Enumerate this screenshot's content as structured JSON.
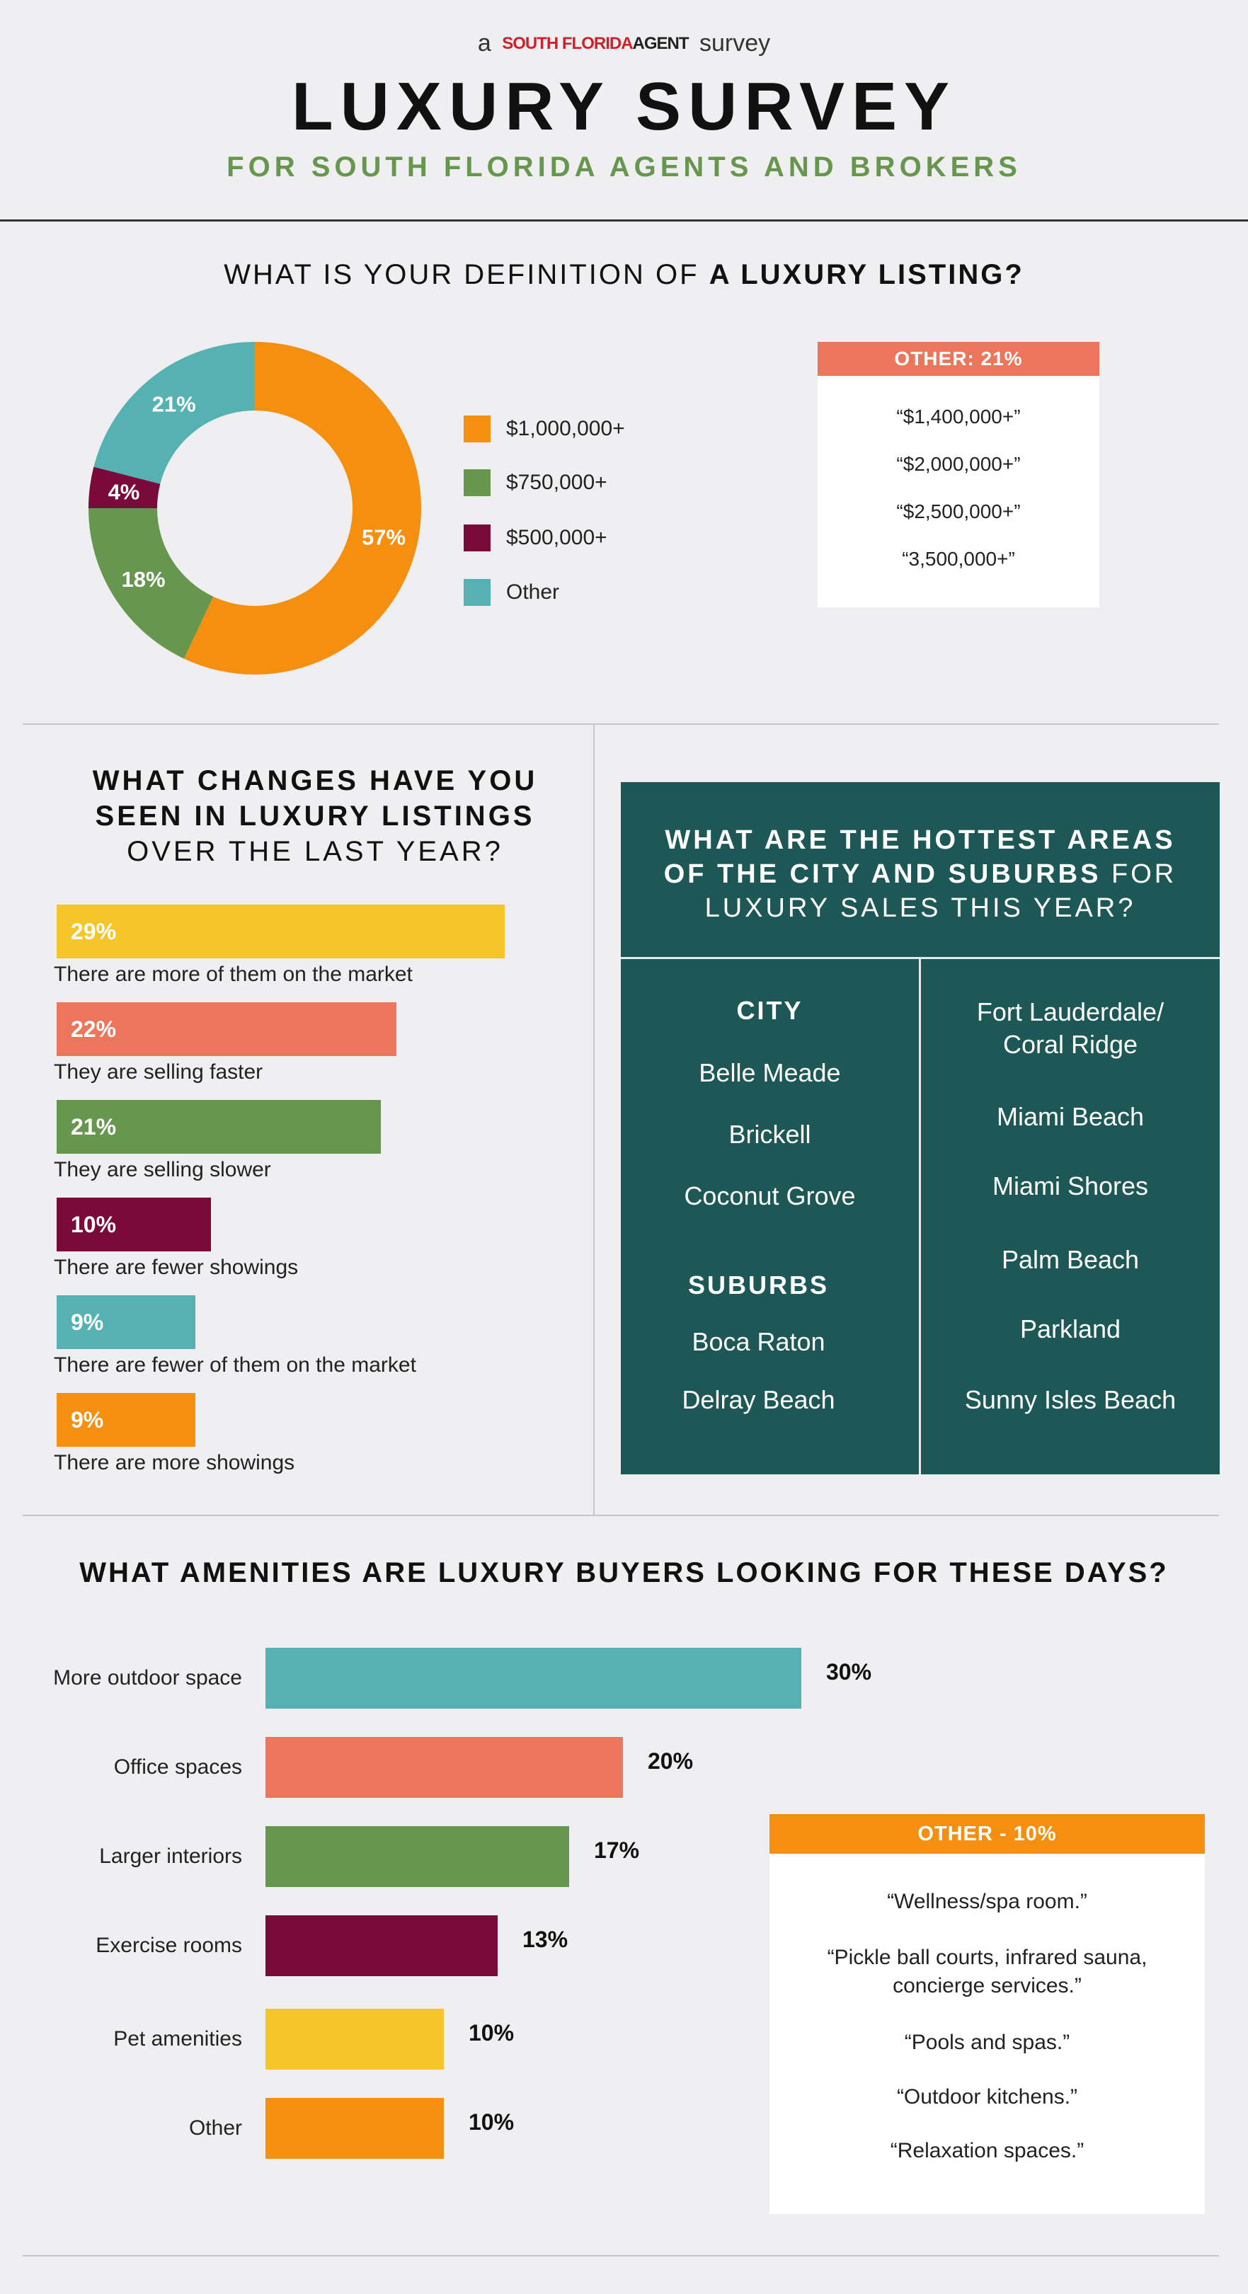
{
  "header": {
    "pre": "a",
    "brand_red": "SOUTH FLORIDA",
    "brand_dark": "AGENT",
    "post": "survey",
    "title": "LUXURY SURVEY",
    "subtitle": "FOR SOUTH FLORIDA AGENTS AND BROKERS"
  },
  "section1": {
    "question_plain": "WHAT IS YOUR DEFINITION OF ",
    "question_bold": "A LUXURY LISTING?",
    "other_box": {
      "header": "OTHER: 21%",
      "lines": [
        "“$1,400,000+”",
        "“$2,000,000+”",
        "“$2,500,000+”",
        "“3,500,000+”"
      ]
    }
  },
  "section2": {
    "question_line1": "WHAT CHANGES HAVE YOU",
    "question_line2": "SEEN IN LUXURY LISTINGS",
    "question_line3": "OVER THE LAST YEAR?",
    "hottest": {
      "q_bold1": "WHAT ARE THE HOTTEST AREAS",
      "q_bold2": "OF THE CITY AND SUBURBS",
      "q_plain2": " FOR",
      "q_plain3": "LUXURY SALES THIS YEAR?",
      "city_heading": "CITY",
      "city": [
        "Belle Meade",
        "Brickell",
        "Coconut Grove"
      ],
      "suburbs_heading": "SUBURBS",
      "suburbs": [
        "Boca Raton",
        "Delray Beach"
      ],
      "right_first_line1": "Fort Lauderdale/",
      "right_first_line2": "Coral Ridge",
      "right": [
        "Miami Beach",
        "Miami Shores",
        "Palm Beach",
        "Parkland",
        "Sunny Isles Beach"
      ]
    }
  },
  "section3": {
    "question": "WHAT AMENITIES ARE LUXURY BUYERS LOOKING FOR THESE DAYS?",
    "other_box": {
      "header": "OTHER - 10%",
      "lines": [
        "“Wellness/spa room.”",
        "“Pickle ball courts, infrared sauna,",
        "concierge services.”",
        "“Pools and spas.”",
        "“Outdoor kitchens.”",
        "“Relaxation spaces.”"
      ]
    }
  },
  "colors": {
    "orange": "#f48f10",
    "green": "#67964f",
    "maroon": "#7a0a3a",
    "teal": "#56b2b2",
    "yellow": "#f5c52a",
    "salmon": "#ec765c",
    "dark_teal": "#1d5856"
  },
  "chart_data": [
    {
      "type": "pie",
      "title": "WHAT IS YOUR DEFINITION OF A LUXURY LISTING?",
      "categories": [
        "$1,000,000+",
        "$750,000+",
        "$500,000+",
        "Other"
      ],
      "values": [
        57,
        18,
        4,
        21
      ],
      "labels": [
        "57%",
        "18%",
        "4%",
        "21%"
      ],
      "colors": [
        "#f48f10",
        "#67964f",
        "#7a0a3a",
        "#56b2b2"
      ],
      "legend": "right"
    },
    {
      "type": "bar",
      "title": "WHAT CHANGES HAVE YOU SEEN IN LUXURY LISTINGS OVER THE LAST YEAR?",
      "categories": [
        "There are more of them on the market",
        "They are selling faster",
        "They are selling slower",
        "There are fewer showings",
        "There are fewer of them on the market",
        "There are more showings"
      ],
      "values": [
        29,
        22,
        21,
        10,
        9,
        9
      ],
      "labels": [
        "29%",
        "22%",
        "21%",
        "10%",
        "9%",
        "9%"
      ],
      "colors": [
        "#f5c52a",
        "#ec765c",
        "#67964f",
        "#7a0a3a",
        "#56b2b2",
        "#f48f10"
      ]
    },
    {
      "type": "bar",
      "title": "WHAT AMENITIES ARE LUXURY BUYERS LOOKING FOR THESE DAYS?",
      "categories": [
        "More outdoor space",
        "Office spaces",
        "Larger interiors",
        "Exercise rooms",
        "Pet amenities",
        "Other"
      ],
      "values": [
        30,
        20,
        17,
        13,
        10,
        10
      ],
      "labels": [
        "30%",
        "20%",
        "17%",
        "13%",
        "10%",
        "10%"
      ],
      "colors": [
        "#56b2b2",
        "#ec765c",
        "#67964f",
        "#7a0a3a",
        "#f5c52a",
        "#f48f10"
      ]
    }
  ]
}
